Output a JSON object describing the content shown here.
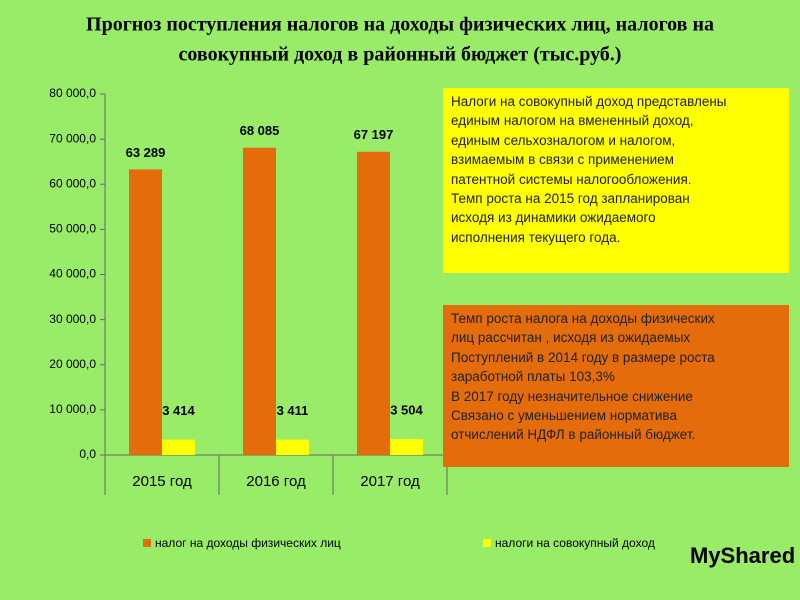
{
  "chart_data": {
    "type": "bar",
    "title": [
      "Прогноз поступления налогов на доходы физических лиц, налогов на",
      "совокупный доход в районный бюджет (тыс.руб.)"
    ],
    "categories": [
      "2015 год",
      "2016 год",
      "2017 год"
    ],
    "series": [
      {
        "name": "налог на доходы физических лиц",
        "color": "#e46c0a",
        "values": [
          63289,
          68085,
          67197
        ],
        "value_labels": [
          "63 289",
          "68 085",
          "67 197"
        ]
      },
      {
        "name": "налоги на совокупный доход",
        "color": "#ffff00",
        "values": [
          3414,
          3411,
          3504
        ],
        "value_labels": [
          "3 414",
          "3 411",
          "3 504"
        ]
      }
    ],
    "ylim": [
      0,
      80000
    ],
    "yticks": [
      {
        "value": 0,
        "label": "0,0"
      },
      {
        "value": 10000,
        "label": "10 000,0"
      },
      {
        "value": 20000,
        "label": "20 000,0"
      },
      {
        "value": 30000,
        "label": "30 000,0"
      },
      {
        "value": 40000,
        "label": "40 000,0"
      },
      {
        "value": 50000,
        "label": "50 000,0"
      },
      {
        "value": 60000,
        "label": "60 000,0"
      },
      {
        "value": 70000,
        "label": "70 000,0"
      },
      {
        "value": 80000,
        "label": "80 000,0"
      }
    ],
    "grid": false,
    "legend": "bottom"
  },
  "text_boxes": [
    {
      "color": "#ffff00",
      "lines": [
        "Налоги на совокупный доход представлены",
        "единым налогом на вмененный доход,",
        "единым сельхозналогом и налогом,",
        "взимаемым в связи с применением",
        "патентной системы налогообложения.",
        "Темп роста на 2015 год запланирован",
        "исходя из динамики ожидаемого",
        "исполнения текущего года."
      ]
    },
    {
      "color": "#e46c0a",
      "lines": [
        "Темп роста  налога на доходы физических",
        "лиц рассчитан , исходя из ожидаемых",
        "Поступлений в 2014 году в размере роста",
        "заработной платы  103,3%",
        "В  2017 году незначительное  снижение",
        "Связано с уменьшением  норматива",
        "отчислений  НДФЛ в районный бюджет."
      ]
    }
  ],
  "watermark": "MyShared"
}
